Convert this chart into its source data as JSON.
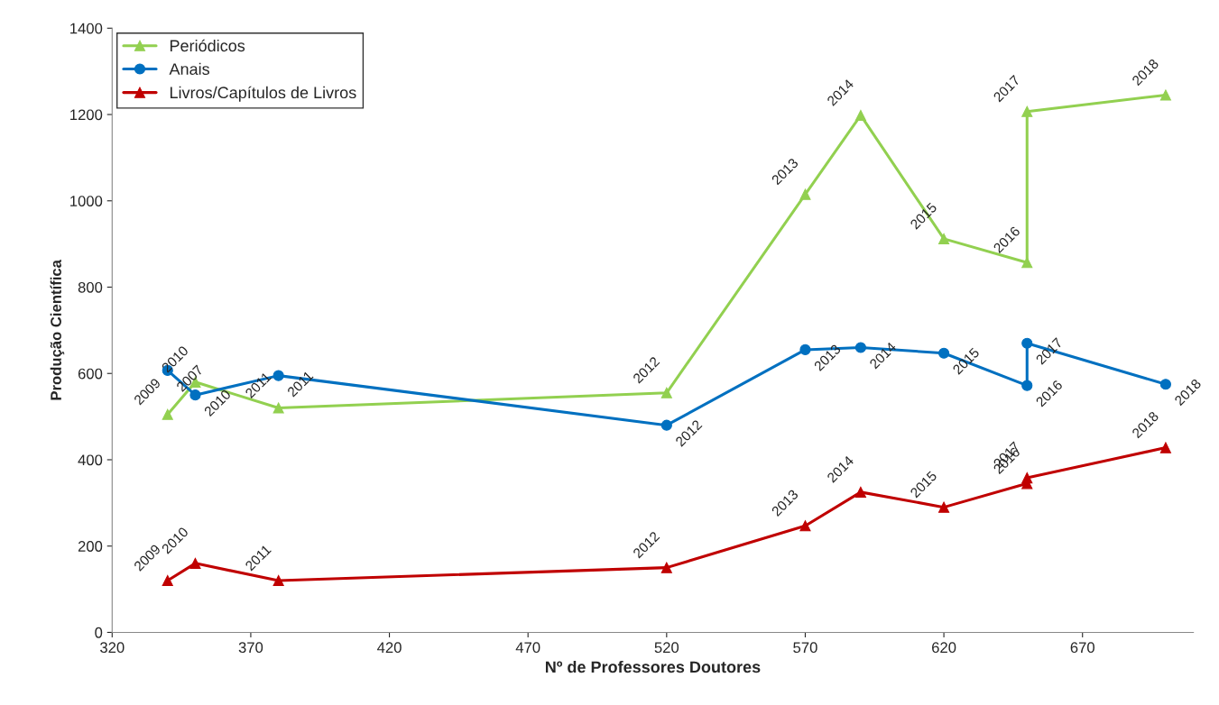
{
  "chart_data": {
    "type": "line",
    "xlabel": "Nº de Professores Doutores",
    "ylabel": "Produção Científica",
    "xlim": [
      320,
      710
    ],
    "xticks": [
      320,
      370,
      420,
      470,
      520,
      570,
      620,
      670
    ],
    "ylim": [
      0,
      1400
    ],
    "yticks": [
      0,
      200,
      400,
      600,
      800,
      1000,
      1200,
      1400
    ],
    "grid": false,
    "legend": "top left",
    "series": [
      {
        "name": "Periódicos",
        "color": "#92d050",
        "marker": "triangle",
        "x": [
          340,
          350,
          380,
          520,
          570,
          590,
          620,
          650,
          650,
          700
        ],
        "values": [
          505,
          580,
          520,
          555,
          1015,
          1198,
          912,
          857,
          1207,
          1245
        ]
      },
      {
        "name": "Anais",
        "color": "#0070c0",
        "marker": "circle",
        "x": [
          340,
          350,
          380,
          520,
          570,
          590,
          620,
          650,
          650,
          700
        ],
        "values": [
          607,
          550,
          595,
          480,
          655,
          660,
          647,
          572,
          670,
          575
        ]
      },
      {
        "name": "Livros/Capítulos de Livros",
        "color": "#c00000",
        "marker": "triangle",
        "x": [
          340,
          350,
          380,
          520,
          570,
          590,
          620,
          650,
          650,
          700
        ],
        "values": [
          120,
          160,
          120,
          150,
          247,
          325,
          290,
          345,
          358,
          428
        ]
      }
    ],
    "annotations": [
      {
        "text": "2009",
        "x": 340,
        "y": 505
      },
      {
        "text": "2010",
        "x": 350,
        "y": 580
      },
      {
        "text": "2011",
        "x": 380,
        "y": 520
      },
      {
        "text": "2012",
        "x": 520,
        "y": 555
      },
      {
        "text": "2013",
        "x": 570,
        "y": 1015
      },
      {
        "text": "2014",
        "x": 590,
        "y": 1198
      },
      {
        "text": "2015",
        "x": 620,
        "y": 912
      },
      {
        "text": "2016",
        "x": 650,
        "y": 857
      },
      {
        "text": "2017",
        "x": 650,
        "y": 1207
      },
      {
        "text": "2018",
        "x": 700,
        "y": 1245
      },
      {
        "text": "2007",
        "x": 340,
        "y": 607
      },
      {
        "text": "2010",
        "x": 350,
        "y": 550
      },
      {
        "text": "2011",
        "x": 380,
        "y": 595
      },
      {
        "text": "2012",
        "x": 520,
        "y": 480
      },
      {
        "text": "2013",
        "x": 570,
        "y": 655
      },
      {
        "text": "2014",
        "x": 590,
        "y": 660
      },
      {
        "text": "2015",
        "x": 620,
        "y": 647
      },
      {
        "text": "2016",
        "x": 650,
        "y": 572
      },
      {
        "text": "2017",
        "x": 650,
        "y": 670
      },
      {
        "text": "2018",
        "x": 700,
        "y": 575
      },
      {
        "text": "2009",
        "x": 340,
        "y": 120
      },
      {
        "text": "2010",
        "x": 350,
        "y": 160
      },
      {
        "text": "2011",
        "x": 380,
        "y": 120
      },
      {
        "text": "2012",
        "x": 520,
        "y": 150
      },
      {
        "text": "2013",
        "x": 570,
        "y": 247
      },
      {
        "text": "2014",
        "x": 590,
        "y": 325
      },
      {
        "text": "2015",
        "x": 620,
        "y": 290
      },
      {
        "text": "2016",
        "x": 650,
        "y": 345
      },
      {
        "text": "2017",
        "x": 650,
        "y": 358
      },
      {
        "text": "2018",
        "x": 700,
        "y": 428
      }
    ]
  }
}
